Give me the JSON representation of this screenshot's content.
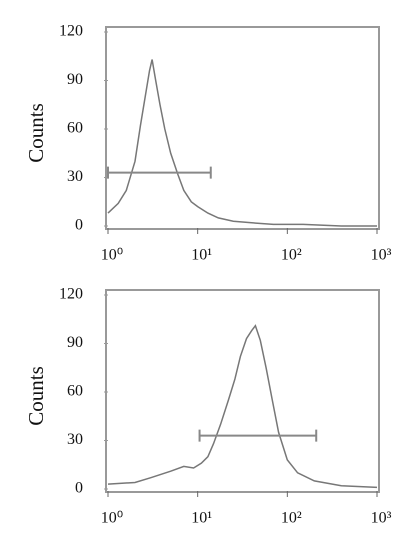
{
  "chart_data": [
    {
      "type": "line",
      "ylabel": "Counts",
      "xscale": "log",
      "color": "#777777",
      "x": [
        1,
        1.3,
        1.6,
        2,
        2.3,
        2.6,
        2.9,
        3.1,
        3.4,
        3.8,
        4.3,
        5,
        6,
        7,
        8.5,
        10,
        13,
        17,
        25,
        40,
        70,
        150,
        400,
        1000
      ],
      "values": [
        8,
        14,
        22,
        40,
        62,
        80,
        96,
        103,
        90,
        75,
        60,
        45,
        32,
        22,
        15,
        12,
        8,
        5,
        3,
        2,
        1,
        1,
        0,
        0
      ],
      "xlim": [
        1,
        1000
      ],
      "ylim": [
        0,
        120
      ],
      "xticks": [
        {
          "value": 1,
          "label": "10⁰"
        },
        {
          "value": 10,
          "label": "10¹"
        },
        {
          "value": 100,
          "label": "10²"
        },
        {
          "value": 1000,
          "label": "10³"
        }
      ],
      "yticks": [
        0,
        30,
        60,
        90,
        120
      ],
      "gate": {
        "start": 1,
        "end": 14,
        "level": 33,
        "color": "#888888"
      }
    },
    {
      "type": "line",
      "ylabel": "Counts",
      "xscale": "log",
      "color": "#777777",
      "x": [
        1,
        2,
        3,
        5,
        7,
        9,
        11,
        13,
        15,
        18,
        22,
        26,
        30,
        35,
        40,
        44,
        50,
        58,
        68,
        80,
        100,
        130,
        200,
        400,
        1000
      ],
      "values": [
        3,
        4,
        7,
        11,
        14,
        13,
        16,
        20,
        28,
        40,
        55,
        68,
        82,
        93,
        98,
        101,
        92,
        75,
        55,
        35,
        18,
        10,
        5,
        2,
        1
      ],
      "xlim": [
        1,
        1000
      ],
      "ylim": [
        0,
        120
      ],
      "xticks": [
        {
          "value": 1,
          "label": "10⁰"
        },
        {
          "value": 10,
          "label": "10¹"
        },
        {
          "value": 100,
          "label": "10²"
        },
        {
          "value": 1000,
          "label": "10³"
        }
      ],
      "yticks": [
        0,
        30,
        60,
        90,
        120
      ],
      "gate": {
        "start": 10.5,
        "end": 210,
        "level": 33,
        "color": "#888888"
      }
    }
  ]
}
